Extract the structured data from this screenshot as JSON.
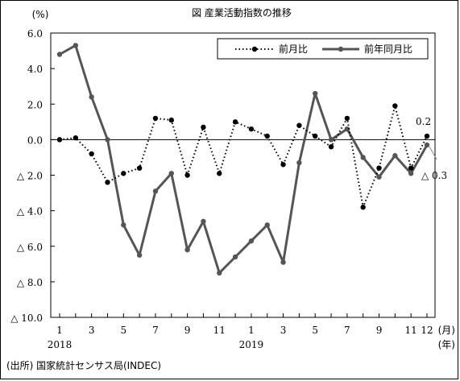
{
  "chart_data": {
    "type": "line",
    "title": "図 産業活動指数の推移",
    "unit_label": "(%)",
    "source": "(出所) 国家統計センサス局(INDEC)",
    "x": [
      1,
      2,
      3,
      4,
      5,
      6,
      7,
      8,
      9,
      10,
      11,
      12,
      13,
      14,
      15,
      16,
      17,
      18,
      19,
      20,
      21,
      22,
      23,
      24
    ],
    "xtick_labels": [
      "1",
      "3",
      "5",
      "7",
      "9",
      "11",
      "1",
      "3",
      "5",
      "7",
      "9",
      "11",
      "12"
    ],
    "xtick_positions": [
      1,
      3,
      5,
      7,
      9,
      11,
      13,
      15,
      17,
      19,
      21,
      23,
      24
    ],
    "year_labels": [
      "2018",
      "2019"
    ],
    "x_unit_month": "(月)",
    "x_unit_year": "(年)",
    "ylim": [
      -10.0,
      6.0
    ],
    "yticks": [
      {
        "value": 6.0,
        "label": "6.0"
      },
      {
        "value": 4.0,
        "label": "4.0"
      },
      {
        "value": 2.0,
        "label": "2.0"
      },
      {
        "value": 0.0,
        "label": "0.0"
      },
      {
        "value": -2.0,
        "label": "△ 2.0"
      },
      {
        "value": -4.0,
        "label": "△ 4.0"
      },
      {
        "value": -6.0,
        "label": "△ 6.0"
      },
      {
        "value": -8.0,
        "label": "△ 8.0"
      },
      {
        "value": -10.0,
        "label": "△ 10.0"
      }
    ],
    "series": [
      {
        "name": "前月比",
        "style": "dotted-markers",
        "color": "#000000",
        "values": [
          0.0,
          0.1,
          -0.8,
          -2.4,
          -1.9,
          -1.6,
          1.2,
          1.1,
          -2.0,
          0.7,
          -1.9,
          1.0,
          0.6,
          0.2,
          -1.4,
          0.8,
          0.2,
          -0.4,
          1.2,
          -3.8,
          -1.6,
          1.9,
          -1.6,
          0.2
        ]
      },
      {
        "name": "前年同月比",
        "style": "solid-markers",
        "color": "#555555",
        "values": [
          4.8,
          5.3,
          2.4,
          0.0,
          -4.8,
          -6.5,
          -2.9,
          -1.9,
          -6.2,
          -4.6,
          -7.5,
          -6.6,
          -5.7,
          -4.8,
          -6.9,
          -1.3,
          2.6,
          0.0,
          0.6,
          -1.0,
          -2.1,
          -0.9,
          -1.9,
          -0.3
        ]
      }
    ],
    "annotations": [
      {
        "text": "0.2",
        "x": 24,
        "y": 0.2
      },
      {
        "text": "△ 0.3",
        "x": 24,
        "y": -0.3
      }
    ]
  }
}
